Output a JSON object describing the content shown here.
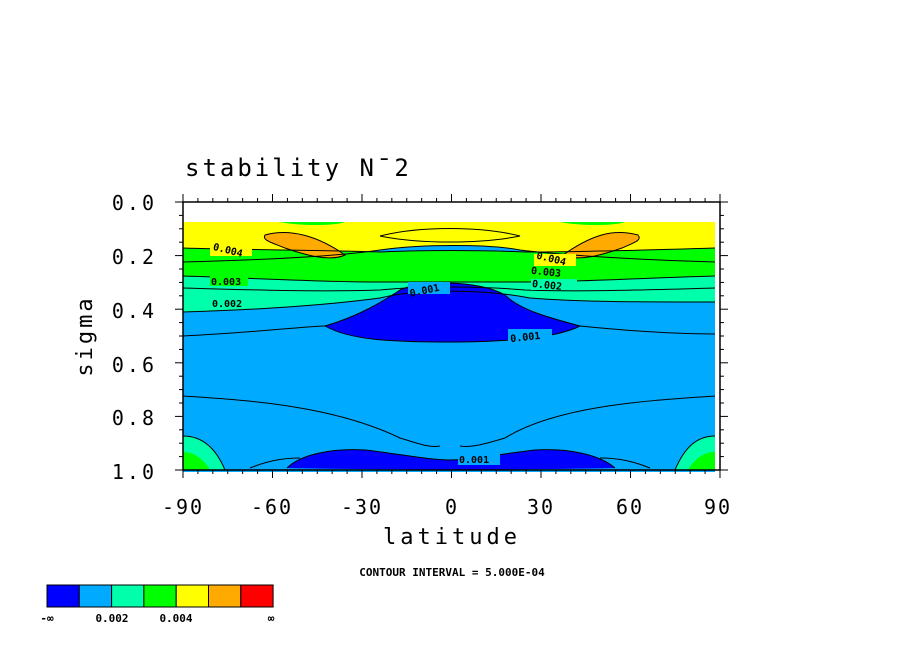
{
  "chart_data": {
    "type": "contour",
    "title": "stability N¯2",
    "xlabel": "latitude",
    "ylabel": "sigma",
    "x_ticks": [
      "-90",
      "-60",
      "-30",
      "0",
      "30",
      "60",
      "90"
    ],
    "y_ticks": [
      "0.0",
      "0.2",
      "0.4",
      "0.6",
      "0.8",
      "1.0"
    ],
    "xlim": [
      -90,
      90
    ],
    "ylim": [
      1.0,
      0.0
    ],
    "contour_interval_label": "CONTOUR INTERVAL = 5.000E-04",
    "contour_interval": 0.0005,
    "contour_labels": [
      "0.004",
      "0.003",
      "0.002",
      "0.001",
      "0.001",
      "0.001",
      "0.004",
      "0.003",
      "0.002"
    ],
    "colorbar": {
      "colors": [
        "#0000ff",
        "#00aaff",
        "#00ffaa",
        "#00ff00",
        "#ffff00",
        "#ffaa00",
        "#ff0000"
      ],
      "boundaries": [
        0.001,
        0.002,
        0.003,
        0.004,
        0.005,
        0.006
      ],
      "tick_labels": [
        "-∞",
        "0.002",
        "0.004",
        "∞"
      ]
    },
    "fields": [
      {
        "band": "0.005-0.006",
        "regions": [
          {
            "lat": [
              -60,
              -40
            ],
            "sigma": [
              0.12,
              0.2
            ]
          },
          {
            "lat": [
              40,
              60
            ],
            "sigma": [
              0.12,
              0.2
            ]
          }
        ]
      },
      {
        "band": "0.004-0.005",
        "regions": [
          {
            "lat": [
              -90,
              90
            ],
            "sigma": [
              0.08,
              0.2
            ]
          }
        ]
      },
      {
        "band": "0.003-0.004",
        "regions": [
          {
            "lat": [
              -90,
              90
            ],
            "sigma": [
              0.18,
              0.28
            ]
          }
        ]
      },
      {
        "band": "0.002-0.003",
        "regions": [
          {
            "lat": [
              -90,
              90
            ],
            "sigma": [
              0.27,
              0.38
            ]
          }
        ]
      },
      {
        "band": "0.001-0.002",
        "regions": [
          {
            "lat": [
              -90,
              90
            ],
            "sigma": [
              0.3,
              1.0
            ]
          }
        ]
      },
      {
        "band": "<0.001",
        "regions": [
          {
            "lat": [
              -45,
              45
            ],
            "sigma": [
              0.3,
              0.5
            ]
          },
          {
            "lat": [
              -55,
              55
            ],
            "sigma": [
              0.92,
              1.0
            ]
          }
        ]
      }
    ]
  }
}
